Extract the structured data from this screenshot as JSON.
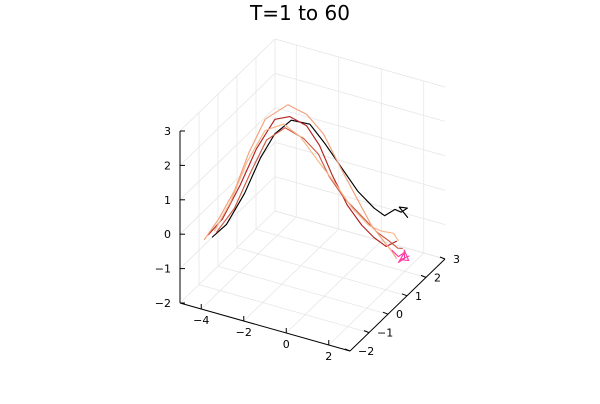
{
  "chart_data": {
    "type": "line3d",
    "title": "T=1 to 60",
    "grid": true,
    "legend": "none",
    "x_ticks": [
      "−4",
      "−2",
      "0",
      "2"
    ],
    "y_ticks": [
      "−2",
      "−1",
      "0",
      "1",
      "2",
      "3"
    ],
    "z_ticks": [
      "−2",
      "−1",
      "0",
      "1",
      "2",
      "3"
    ],
    "series": [
      {
        "color": "#000000",
        "points": [
          [
            -4.1,
            -1.3,
            -0.3
          ],
          [
            -3.8,
            -0.9,
            -0.1
          ],
          [
            -3.4,
            -0.4,
            0.6
          ],
          [
            -3.0,
            0.0,
            1.5
          ],
          [
            -2.6,
            0.3,
            2.1
          ],
          [
            -2.0,
            0.5,
            2.5
          ],
          [
            -1.3,
            0.7,
            2.4
          ],
          [
            -0.7,
            0.8,
            1.9
          ],
          [
            -0.1,
            1.0,
            1.2
          ],
          [
            0.5,
            1.2,
            0.5
          ],
          [
            1.1,
            1.4,
            0.0
          ],
          [
            1.5,
            1.5,
            -0.2
          ],
          [
            1.9,
            1.6,
            0.0
          ],
          [
            2.1,
            1.7,
            -0.1
          ],
          [
            2.3,
            1.8,
            0.0
          ],
          [
            2.1,
            1.6,
            0.1
          ],
          [
            2.4,
            1.7,
            -0.2
          ]
        ]
      },
      {
        "color": "#b22222",
        "points": [
          [
            -4.2,
            -1.4,
            -0.2
          ],
          [
            -3.9,
            -1.0,
            0.1
          ],
          [
            -3.5,
            -0.5,
            0.9
          ],
          [
            -3.1,
            -0.1,
            1.8
          ],
          [
            -2.5,
            0.2,
            2.6
          ],
          [
            -1.8,
            0.2,
            2.8
          ],
          [
            -1.1,
            0.3,
            2.6
          ],
          [
            -0.4,
            0.2,
            2.2
          ],
          [
            0.3,
            0.1,
            1.5
          ],
          [
            0.9,
            0.2,
            0.7
          ],
          [
            1.4,
            0.4,
            0.1
          ],
          [
            1.8,
            0.6,
            -0.3
          ],
          [
            2.2,
            0.8,
            -0.6
          ],
          [
            2.5,
            1.0,
            -0.5
          ]
        ]
      },
      {
        "color": "#d05a45",
        "points": [
          [
            -4.0,
            -1.2,
            -0.2
          ],
          [
            -3.6,
            -0.7,
            0.3
          ],
          [
            -3.2,
            -0.3,
            1.2
          ],
          [
            -2.8,
            0.1,
            2.0
          ],
          [
            -2.2,
            0.4,
            2.3
          ],
          [
            -1.5,
            0.6,
            2.0
          ],
          [
            -0.9,
            0.7,
            1.6
          ],
          [
            -0.3,
            0.6,
            1.1
          ],
          [
            0.4,
            0.6,
            0.6
          ],
          [
            1.0,
            0.8,
            0.1
          ],
          [
            1.6,
            1.0,
            -0.4
          ],
          [
            2.0,
            1.2,
            -0.7
          ],
          [
            2.3,
            1.3,
            -0.9
          ],
          [
            2.6,
            1.2,
            -0.8
          ]
        ]
      },
      {
        "color": "#f4a07a",
        "points": [
          [
            -4.3,
            -1.5,
            -0.3
          ],
          [
            -3.9,
            -1.2,
            0.2
          ],
          [
            -3.5,
            -0.8,
            0.9
          ],
          [
            -3.1,
            -0.5,
            1.9
          ],
          [
            -2.6,
            -0.2,
            2.8
          ],
          [
            -1.8,
            0.1,
            3.2
          ],
          [
            -1.0,
            0.2,
            3.0
          ],
          [
            -0.3,
            0.3,
            2.5
          ],
          [
            0.4,
            0.4,
            1.6
          ],
          [
            1.0,
            0.6,
            0.7
          ],
          [
            1.5,
            0.8,
            -0.1
          ],
          [
            1.9,
            1.0,
            -0.6
          ],
          [
            2.2,
            1.1,
            -0.9
          ],
          [
            2.5,
            1.0,
            -1.0
          ]
        ]
      },
      {
        "color": "#f7b58a",
        "points": [
          [
            -4.0,
            -1.3,
            -0.1
          ],
          [
            -3.6,
            -0.9,
            0.6
          ],
          [
            -3.2,
            -0.5,
            1.6
          ],
          [
            -2.7,
            -0.1,
            2.4
          ],
          [
            -2.0,
            0.1,
            2.6
          ],
          [
            -1.3,
            0.2,
            2.3
          ],
          [
            -0.6,
            0.3,
            1.7
          ],
          [
            0.1,
            0.5,
            1.0
          ],
          [
            0.7,
            0.7,
            0.3
          ],
          [
            1.3,
            0.9,
            -0.2
          ],
          [
            1.7,
            1.1,
            -0.4
          ],
          [
            2.1,
            1.3,
            -0.5
          ],
          [
            2.4,
            1.2,
            -0.6
          ]
        ]
      },
      {
        "color": "#ff3ea5",
        "points": [
          [
            2.3,
            1.0,
            -0.8
          ],
          [
            2.5,
            1.1,
            -1.0
          ],
          [
            2.7,
            1.2,
            -0.9
          ],
          [
            2.6,
            1.0,
            -1.1
          ],
          [
            2.8,
            1.1,
            -1.0
          ],
          [
            2.6,
            1.3,
            -0.9
          ],
          [
            2.9,
            1.2,
            -1.1
          ],
          [
            2.7,
            1.0,
            -1.0
          ],
          [
            3.0,
            1.1,
            -0.9
          ]
        ]
      }
    ]
  }
}
